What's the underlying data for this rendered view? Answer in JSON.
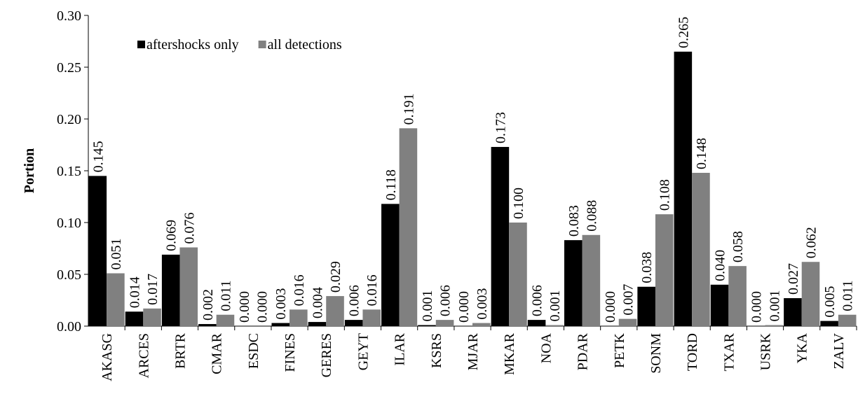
{
  "chart_data": {
    "type": "bar",
    "y_label": "Portion",
    "categories": [
      "AKASG",
      "ARCES",
      "BRTR",
      "CMAR",
      "ESDC",
      "FINES",
      "GERES",
      "GEYT",
      "ILAR",
      "KSRS",
      "MJAR",
      "MKAR",
      "NOA",
      "PDAR",
      "PETK",
      "SONM",
      "TORD",
      "TXAR",
      "USRK",
      "YKA",
      "ZALV"
    ],
    "series": [
      {
        "name": "aftershocks only",
        "color": "#000000",
        "values": [
          0.145,
          0.014,
          0.069,
          0.002,
          0.0,
          0.003,
          0.004,
          0.006,
          0.118,
          0.001,
          0.0,
          0.173,
          0.006,
          0.083,
          0.0,
          0.038,
          0.265,
          0.04,
          0.0,
          0.027,
          0.005
        ],
        "value_labels": [
          "0.145",
          "0.014",
          "0.069",
          "0.002",
          "0.000",
          "0.003",
          "0.004",
          "0.006",
          "0.118",
          "0.001",
          "0.000",
          "0.173",
          "0.006",
          "0.083",
          "0.000",
          "0.038",
          "0.265",
          "0.040",
          "0.000",
          "0.027",
          "0.005"
        ]
      },
      {
        "name": "all detections",
        "color": "#808080",
        "values": [
          0.051,
          0.017,
          0.076,
          0.011,
          0.0,
          0.016,
          0.029,
          0.016,
          0.191,
          0.006,
          0.003,
          0.1,
          0.001,
          0.088,
          0.007,
          0.108,
          0.148,
          0.058,
          0.001,
          0.062,
          0.011
        ],
        "value_labels": [
          "0.051",
          "0.017",
          "0.076",
          "0.011",
          "0.000",
          "0.016",
          "0.029",
          "0.016",
          "0.191",
          "0.006",
          "0.003",
          "0.100",
          "0.001",
          "0.088",
          "0.007",
          "0.108",
          "0.148",
          "0.058",
          "0.001",
          "0.062",
          "0.011"
        ]
      }
    ],
    "ylim": [
      0,
      0.3
    ],
    "yticks": [
      {
        "value": 0,
        "label": "0.00"
      },
      0.05,
      {
        "value": 0.1,
        "label": "0.10"
      },
      0.15,
      {
        "value": 0.2,
        "label": "0.20"
      },
      0.25,
      {
        "value": 0.3,
        "label": "0.30"
      }
    ],
    "legend": "top-left"
  }
}
